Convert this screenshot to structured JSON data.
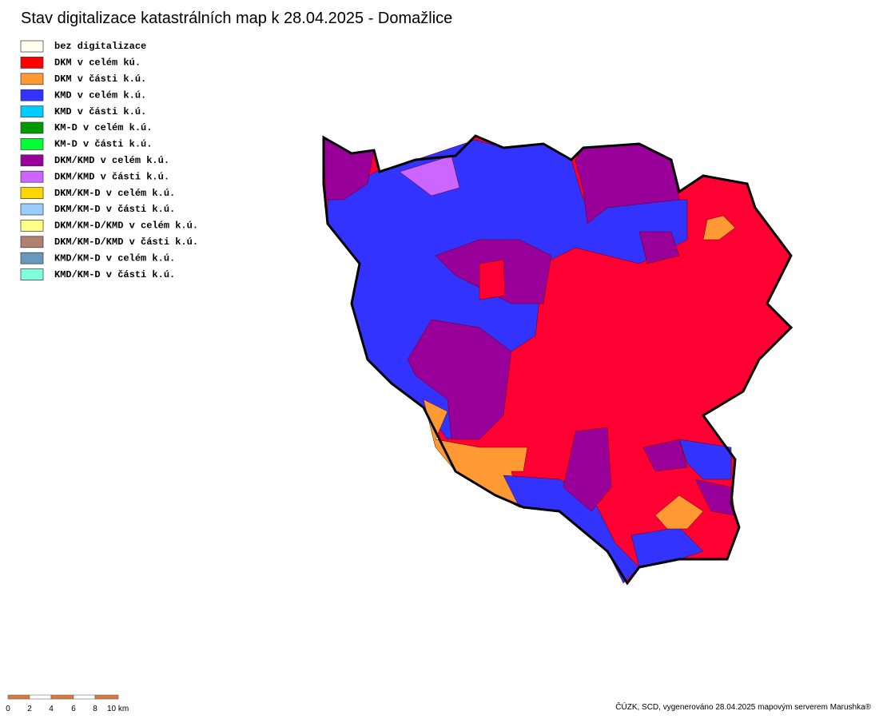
{
  "title": "Stav digitalizace katastrálních map k 28.04.2025 - Domažlice",
  "legend": [
    {
      "label": "bez digitalizace",
      "color": "#ffffee"
    },
    {
      "label": "DKM v celém kú.",
      "color": "#ff0000"
    },
    {
      "label": "DKM v části k.ú.",
      "color": "#ff9933"
    },
    {
      "label": "KMD v celém k.ú.",
      "color": "#3333ff"
    },
    {
      "label": "KMD v části k.ú.",
      "color": "#00ccff"
    },
    {
      "label": "KM-D v celém k.ú.",
      "color": "#009900"
    },
    {
      "label": "KM-D v části k.ú.",
      "color": "#00ff33"
    },
    {
      "label": "DKM/KMD v celém k.ú.",
      "color": "#990099"
    },
    {
      "label": "DKM/KMD v části k.ú.",
      "color": "#cc66ff"
    },
    {
      "label": "DKM/KM-D v celém k.ú.",
      "color": "#ffd700"
    },
    {
      "label": "DKM/KM-D v části k.ú.",
      "color": "#99ccff"
    },
    {
      "label": "DKM/KM-D/KMD v celém k.ú.",
      "color": "#ffff88"
    },
    {
      "label": "DKM/KM-D/KMD v části k.ú.",
      "color": "#b08070"
    },
    {
      "label": "KMD/KM-D v celém k.ú.",
      "color": "#6699bb"
    },
    {
      "label": "KMD/KM-D v části k.ú.",
      "color": "#80ffdd"
    }
  ],
  "scale_bar": {
    "labels": [
      "0",
      "2",
      "4",
      "6",
      "8",
      "10 km"
    ]
  },
  "credit": "ČÚZK, SCD, vygenerováno 28.04.2025 mapovým serverem Marushka®"
}
